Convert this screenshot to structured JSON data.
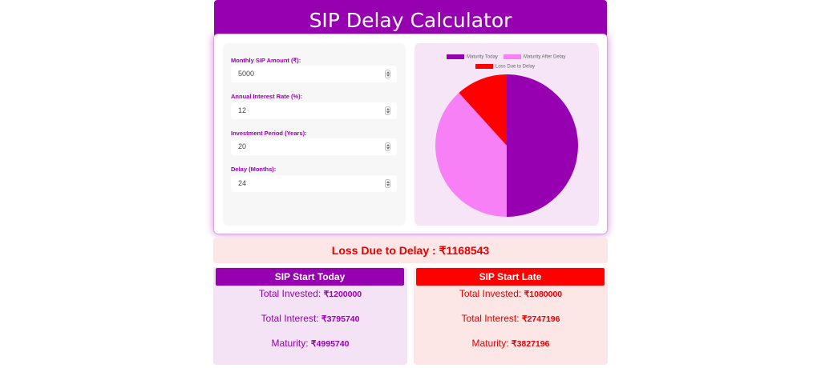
{
  "header": {
    "title": "SIP Delay Calculator"
  },
  "form": {
    "fields": [
      {
        "label": "Monthly SIP Amount (₹):",
        "value": "5000"
      },
      {
        "label": "Annual Interest Rate (%):",
        "value": "12"
      },
      {
        "label": "Investment Period (Years):",
        "value": "20"
      },
      {
        "label": "Delay (Months):",
        "value": "24"
      }
    ]
  },
  "chart_data": {
    "type": "pie",
    "categories": [
      "Maturity Today",
      "Maturity After Delay",
      "Loss Due to Delay"
    ],
    "values": [
      4995740,
      3827196,
      1168543
    ],
    "colors": [
      "#9700b0",
      "#f780f7",
      "#ff0000"
    ],
    "legend_position": "top"
  },
  "loss": {
    "label": "Loss Due to Delay :",
    "value": "₹1168543"
  },
  "today": {
    "title": "SIP Start Today",
    "invested_label": "Total Invested:",
    "invested": "₹1200000",
    "interest_label": "Total Interest:",
    "interest": "₹3795740",
    "maturity_label": "Maturity:",
    "maturity": "₹4995740"
  },
  "late": {
    "title": "SIP Start Late",
    "invested_label": "Total Invested:",
    "invested": "₹1080000",
    "interest_label": "Total Interest:",
    "interest": "₹2747196",
    "maturity_label": "Maturity:",
    "maturity": "₹3827196"
  }
}
